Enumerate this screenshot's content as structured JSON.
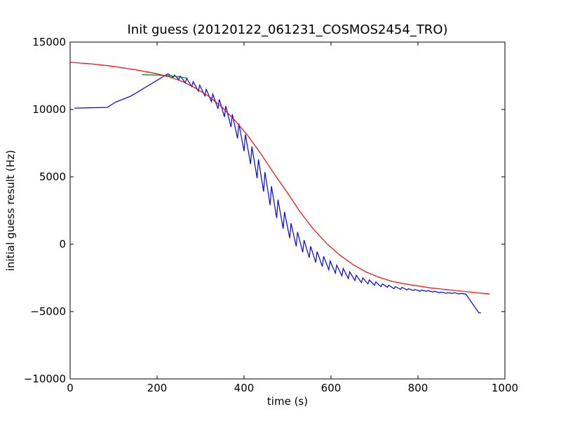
{
  "chart_data": {
    "type": "line",
    "title": "Init guess (20120122_061231_COSMOS2454_TRO)",
    "xlabel": "time (s)",
    "ylabel": "initial guess result (Hz)",
    "xlim": [
      0,
      1000
    ],
    "ylim": [
      -10000,
      15000
    ],
    "xticks": [
      0,
      200,
      400,
      600,
      800,
      1000
    ],
    "yticks": [
      -10000,
      -5000,
      0,
      5000,
      10000,
      15000
    ],
    "xtick_labels": [
      "0",
      "200",
      "400",
      "600",
      "800",
      "1000"
    ],
    "ytick_labels": [
      "−10000",
      "−5000",
      "0",
      "5000",
      "10000",
      "15000"
    ],
    "grid": false,
    "colors": {
      "blue": "#0000ff",
      "green": "#008000",
      "red": "#ff0000"
    },
    "series": [
      {
        "color": "#0000ff",
        "x": [
          10,
          85,
          105,
          140,
          220,
          225,
          237,
          240,
          250,
          253,
          265,
          268,
          280,
          283,
          295,
          298,
          310,
          313,
          325,
          328,
          340,
          343,
          355,
          358,
          370,
          373,
          385,
          388,
          400,
          403,
          415,
          418,
          430,
          433,
          445,
          448,
          460,
          463,
          475,
          478,
          490,
          493,
          505,
          508,
          520,
          523,
          535,
          538,
          550,
          553,
          565,
          568,
          580,
          583,
          595,
          598,
          610,
          613,
          625,
          628,
          640,
          643,
          655,
          658,
          670,
          673,
          685,
          688,
          700,
          703,
          715,
          718,
          730,
          733,
          745,
          748,
          760,
          763,
          775,
          778,
          790,
          793,
          805,
          808,
          820,
          823,
          835,
          838,
          850,
          853,
          865,
          868,
          880,
          883,
          895,
          898,
          910,
          940,
          945
        ],
        "y": [
          10100,
          10150,
          10550,
          11000,
          12550,
          12650,
          12380,
          12550,
          12220,
          12480,
          11980,
          12300,
          11700,
          12060,
          11350,
          11800,
          11000,
          11500,
          10580,
          11150,
          10050,
          10750,
          9450,
          10250,
          8700,
          9650,
          7850,
          8950,
          6900,
          8150,
          5950,
          7250,
          4900,
          6300,
          3900,
          5350,
          2900,
          4300,
          1950,
          3300,
          1150,
          2400,
          450,
          1550,
          -150,
          900,
          -600,
          300,
          -1000,
          -150,
          -1350,
          -550,
          -1650,
          -900,
          -1900,
          -1250,
          -2150,
          -1550,
          -2350,
          -1800,
          -2550,
          -2050,
          -2700,
          -2300,
          -2850,
          -2500,
          -2950,
          -2650,
          -3050,
          -2800,
          -3150,
          -2950,
          -3200,
          -3050,
          -3300,
          -3150,
          -3350,
          -3200,
          -3400,
          -3300,
          -3450,
          -3350,
          -3500,
          -3400,
          -3500,
          -3450,
          -3550,
          -3500,
          -3600,
          -3550,
          -3650,
          -3600,
          -3650,
          -3600,
          -3700,
          -3650,
          -3700,
          -5100,
          -5100
        ]
      },
      {
        "color": "#008000",
        "x": [
          165,
          200,
          230,
          250,
          270
        ],
        "y": [
          12580,
          12550,
          12500,
          12420,
          12320
        ]
      },
      {
        "color": "#ff0000",
        "x": [
          0,
          50,
          100,
          150,
          200,
          230,
          260,
          290,
          320,
          350,
          380,
          410,
          440,
          470,
          500,
          530,
          560,
          590,
          620,
          650,
          680,
          710,
          740,
          770,
          800,
          830,
          860,
          890,
          920,
          950,
          965
        ],
        "y": [
          13500,
          13380,
          13200,
          12950,
          12650,
          12400,
          12050,
          11550,
          10950,
          10150,
          9150,
          8000,
          6650,
          5200,
          3800,
          2350,
          1100,
          50,
          -800,
          -1500,
          -2050,
          -2450,
          -2750,
          -2950,
          -3100,
          -3250,
          -3350,
          -3450,
          -3550,
          -3650,
          -3700
        ]
      }
    ]
  }
}
